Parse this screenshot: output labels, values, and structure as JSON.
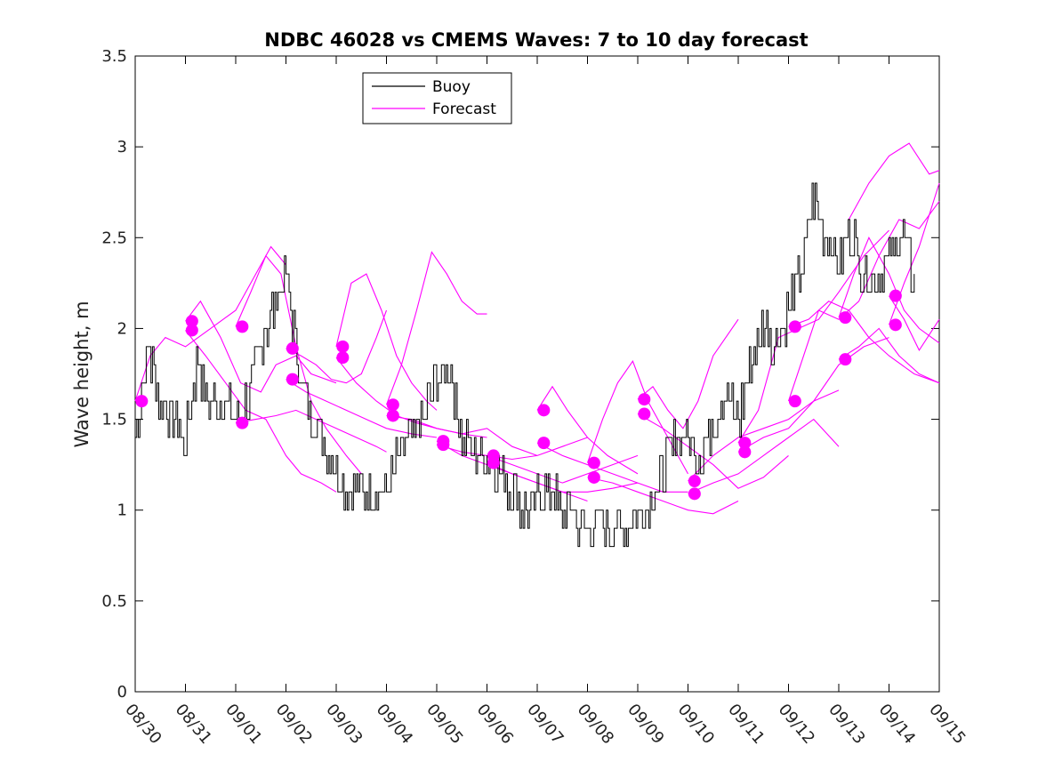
{
  "chart_data": {
    "type": "line",
    "title": "NDBC 46028 vs CMEMS Waves: 7 to 10 day forecast",
    "xlabel": "",
    "ylabel": "Wave height, m",
    "xlim": [
      0,
      16
    ],
    "ylim": [
      0,
      3.5
    ],
    "x_unit": "days since 08/30 00:00",
    "x_ticks": [
      0,
      1,
      2,
      3,
      4,
      5,
      6,
      7,
      8,
      9,
      10,
      11,
      12,
      13,
      14,
      15,
      16
    ],
    "x_tick_labels": [
      "08/30",
      "08/31",
      "09/01",
      "09/02",
      "09/03",
      "09/04",
      "09/05",
      "09/06",
      "09/07",
      "09/08",
      "09/09",
      "09/10",
      "09/11",
      "09/12",
      "09/13",
      "09/14",
      "09/15"
    ],
    "y_ticks": [
      0,
      0.5,
      1,
      1.5,
      2,
      2.5,
      3,
      3.5
    ],
    "y_tick_labels": [
      "0",
      "0.5",
      "1",
      "1.5",
      "2",
      "2.5",
      "3",
      "3.5"
    ],
    "grid": false,
    "legend_position": "top-left",
    "colors": {
      "buoy": "#000000",
      "forecast": "#ff00ff"
    },
    "series": [
      {
        "name": "Buoy",
        "color": "#000000",
        "x": [
          0,
          0.25,
          0.5,
          0.75,
          1,
          1.25,
          1.5,
          1.75,
          2,
          2.25,
          2.5,
          2.75,
          3,
          3.25,
          3.5,
          3.75,
          4,
          4.25,
          4.5,
          4.75,
          5,
          5.25,
          5.5,
          5.75,
          6,
          6.25,
          6.5,
          6.75,
          7,
          7.25,
          7.5,
          7.75,
          8,
          8.25,
          8.5,
          8.75,
          9,
          9.25,
          9.5,
          9.75,
          10,
          10.25,
          10.5,
          10.75,
          11,
          11.25,
          11.5,
          11.75,
          12,
          12.25,
          12.5,
          12.75,
          13,
          13.25,
          13.5,
          13.75,
          14,
          14.25,
          14.5,
          14.75,
          15,
          15.25,
          15.5
        ],
        "y": [
          1.4,
          1.9,
          1.6,
          1.5,
          1.4,
          1.8,
          1.55,
          1.6,
          1.5,
          1.6,
          1.9,
          2.1,
          2.3,
          1.8,
          1.5,
          1.4,
          1.2,
          1.1,
          1.1,
          1.15,
          1.1,
          1.3,
          1.4,
          1.5,
          1.7,
          1.8,
          1.4,
          1.3,
          1.3,
          1.2,
          1.1,
          1.0,
          1.05,
          1.1,
          1.0,
          0.95,
          0.9,
          0.95,
          0.9,
          0.9,
          1.0,
          1.05,
          1.2,
          1.4,
          1.4,
          1.3,
          1.5,
          1.6,
          1.5,
          1.8,
          2.0,
          1.9,
          2.1,
          2.3,
          2.7,
          2.5,
          2.4,
          2.5,
          2.3,
          2.3,
          2.4,
          2.5,
          2.3
        ]
      }
    ],
    "forecast_runs": [
      {
        "name": "Forecast",
        "x": [
          0,
          0.3,
          0.6,
          1.0,
          1.5,
          2.0,
          2.4,
          2.7,
          3.0
        ],
        "y": [
          1.6,
          1.85,
          1.95,
          1.9,
          2.0,
          2.1,
          2.3,
          2.45,
          2.35
        ]
      },
      {
        "name": "Forecast",
        "x": [
          1.0,
          1.3,
          1.7,
          2.1,
          2.5,
          2.8,
          3.2,
          3.5,
          4.0
        ],
        "y": [
          2.04,
          2.15,
          1.95,
          1.7,
          1.65,
          1.8,
          1.85,
          1.75,
          1.7
        ]
      },
      {
        "name": "Forecast",
        "x": [
          1.0,
          1.4,
          1.8,
          2.2,
          2.6,
          3.0,
          3.3,
          3.7,
          4.0
        ],
        "y": [
          1.99,
          1.85,
          1.7,
          1.55,
          1.5,
          1.3,
          1.2,
          1.15,
          1.1
        ]
      },
      {
        "name": "Forecast",
        "x": [
          2.0,
          2.3,
          2.6,
          2.9,
          3.2,
          3.5,
          3.8,
          4.2,
          4.5
        ],
        "y": [
          2.01,
          2.2,
          2.4,
          2.3,
          1.9,
          1.6,
          1.45,
          1.3,
          1.2
        ]
      },
      {
        "name": "Forecast",
        "x": [
          2.0,
          2.4,
          2.8,
          3.2,
          3.6,
          4.0,
          4.4,
          4.8,
          5.0
        ],
        "y": [
          1.48,
          1.5,
          1.52,
          1.55,
          1.5,
          1.45,
          1.4,
          1.35,
          1.32
        ]
      },
      {
        "name": "Forecast",
        "x": [
          3.0,
          3.3,
          3.6,
          3.9,
          4.2,
          4.5,
          4.8,
          5.0
        ],
        "y": [
          1.89,
          1.85,
          1.8,
          1.72,
          1.7,
          1.75,
          1.95,
          2.1
        ]
      },
      {
        "name": "Forecast",
        "x": [
          3.0,
          3.4,
          3.8,
          4.2,
          4.6,
          5.0,
          5.5,
          6.0
        ],
        "y": [
          1.72,
          1.65,
          1.6,
          1.55,
          1.5,
          1.45,
          1.42,
          1.4
        ]
      },
      {
        "name": "Forecast",
        "x": [
          4.0,
          4.3,
          4.6,
          4.9,
          5.2,
          5.5,
          5.8,
          6.0
        ],
        "y": [
          1.9,
          2.25,
          2.3,
          2.1,
          1.85,
          1.7,
          1.6,
          1.55
        ]
      },
      {
        "name": "Forecast",
        "x": [
          4.0,
          4.4,
          4.8,
          5.2,
          5.6,
          6.0,
          6.5,
          7.0
        ],
        "y": [
          1.84,
          1.7,
          1.6,
          1.52,
          1.48,
          1.45,
          1.42,
          1.4
        ]
      },
      {
        "name": "Forecast",
        "x": [
          5.0,
          5.3,
          5.6,
          5.9,
          6.2,
          6.5,
          6.8,
          7.0
        ],
        "y": [
          1.58,
          1.8,
          2.1,
          2.42,
          2.3,
          2.15,
          2.08,
          2.08
        ]
      },
      {
        "name": "Forecast",
        "x": [
          5.0,
          5.5,
          6.0,
          6.5,
          7.0,
          7.5,
          8.0
        ],
        "y": [
          1.52,
          1.5,
          1.45,
          1.42,
          1.45,
          1.35,
          1.3
        ]
      },
      {
        "name": "Forecast",
        "x": [
          6.0,
          6.5,
          7.0,
          7.5,
          8.0,
          8.5,
          9.0
        ],
        "y": [
          1.38,
          1.3,
          1.25,
          1.2,
          1.15,
          1.1,
          1.05
        ]
      },
      {
        "name": "Forecast",
        "x": [
          6.0,
          6.5,
          7.0,
          7.5,
          8.0,
          8.5,
          9.0
        ],
        "y": [
          1.36,
          1.32,
          1.3,
          1.28,
          1.3,
          1.35,
          1.4
        ]
      },
      {
        "name": "Forecast",
        "x": [
          7.0,
          7.5,
          8.0,
          8.5,
          9.0,
          9.5,
          10.0
        ],
        "y": [
          1.3,
          1.25,
          1.2,
          1.15,
          1.2,
          1.25,
          1.3
        ]
      },
      {
        "name": "Forecast",
        "x": [
          7.0,
          7.5,
          8.0,
          8.5,
          9.0,
          9.5,
          10.0
        ],
        "y": [
          1.26,
          1.2,
          1.15,
          1.1,
          1.1,
          1.12,
          1.15
        ]
      },
      {
        "name": "Forecast",
        "x": [
          8.0,
          8.3,
          8.6,
          9.0,
          9.4,
          9.7,
          10.0
        ],
        "y": [
          1.55,
          1.68,
          1.55,
          1.4,
          1.3,
          1.25,
          1.2
        ]
      },
      {
        "name": "Forecast",
        "x": [
          8.0,
          8.5,
          9.0,
          9.5,
          10.0,
          10.5,
          11.0
        ],
        "y": [
          1.37,
          1.3,
          1.25,
          1.2,
          1.15,
          1.1,
          1.1
        ]
      },
      {
        "name": "Forecast",
        "x": [
          9.0,
          9.3,
          9.6,
          9.9,
          10.2,
          10.6,
          11.0
        ],
        "y": [
          1.26,
          1.5,
          1.7,
          1.82,
          1.6,
          1.4,
          1.2
        ]
      },
      {
        "name": "Forecast",
        "x": [
          9.0,
          9.5,
          10.0,
          10.5,
          11.0,
          11.5,
          12.0
        ],
        "y": [
          1.18,
          1.15,
          1.1,
          1.05,
          1.0,
          0.98,
          1.05
        ]
      },
      {
        "name": "Forecast",
        "x": [
          10.0,
          10.3,
          10.6,
          10.9,
          11.2,
          11.5,
          12.0
        ],
        "y": [
          1.61,
          1.68,
          1.55,
          1.45,
          1.6,
          1.85,
          2.05
        ]
      },
      {
        "name": "Forecast",
        "x": [
          10.0,
          10.5,
          11.0,
          11.5,
          12.0,
          12.5,
          13.0
        ],
        "y": [
          1.53,
          1.45,
          1.35,
          1.25,
          1.12,
          1.18,
          1.3
        ]
      },
      {
        "name": "Forecast",
        "x": [
          11.0,
          11.5,
          12.0,
          12.5,
          13.0,
          13.5,
          14.0
        ],
        "y": [
          1.16,
          1.3,
          1.4,
          1.45,
          1.5,
          1.6,
          1.66
        ]
      },
      {
        "name": "Forecast",
        "x": [
          11.0,
          11.5,
          12.0,
          12.5,
          13.0,
          13.5,
          14.0
        ],
        "y": [
          1.09,
          1.15,
          1.2,
          1.3,
          1.4,
          1.5,
          1.35
        ]
      },
      {
        "name": "Forecast",
        "x": [
          12.0,
          12.4,
          12.8,
          13.2,
          13.6,
          14.0,
          14.5,
          15.0
        ],
        "y": [
          1.37,
          1.55,
          1.95,
          2.0,
          2.05,
          2.2,
          2.4,
          2.54
        ]
      },
      {
        "name": "Forecast",
        "x": [
          12.0,
          12.5,
          13.0,
          13.5,
          14.0,
          14.5,
          15.0
        ],
        "y": [
          1.32,
          1.4,
          1.45,
          1.6,
          1.8,
          1.9,
          1.95
        ]
      },
      {
        "name": "Forecast",
        "x": [
          13.0,
          13.3,
          13.6,
          14.0,
          14.4,
          14.8,
          15.2,
          15.6,
          16.0
        ],
        "y": [
          1.6,
          1.85,
          2.1,
          2.05,
          2.15,
          2.4,
          2.6,
          2.55,
          2.7
        ]
      },
      {
        "name": "Forecast",
        "x": [
          13.0,
          13.4,
          13.8,
          14.2,
          14.6,
          15.0,
          15.5,
          16.0
        ],
        "y": [
          2.01,
          2.05,
          2.15,
          2.1,
          1.95,
          1.85,
          1.75,
          1.7
        ]
      },
      {
        "name": "Forecast",
        "x": [
          14.0,
          14.3,
          14.6,
          15.0,
          15.3,
          15.6,
          16.0
        ],
        "y": [
          2.06,
          2.3,
          2.5,
          2.3,
          2.1,
          2.0,
          1.92
        ]
      },
      {
        "name": "Forecast",
        "x": [
          14.0,
          14.4,
          14.8,
          15.2,
          15.6,
          16.0
        ],
        "y": [
          1.83,
          1.9,
          2.0,
          1.85,
          1.75,
          1.7
        ]
      },
      {
        "name": "Forecast",
        "x": [
          14.2,
          14.6,
          15.0,
          15.4,
          15.8,
          16.0
        ],
        "y": [
          2.6,
          2.8,
          2.95,
          3.02,
          2.85,
          2.87
        ]
      },
      {
        "name": "Forecast",
        "x": [
          15.0,
          15.3,
          15.6,
          16.0
        ],
        "y": [
          2.18,
          2.05,
          1.88,
          2.05
        ]
      },
      {
        "name": "Forecast",
        "x": [
          15.0,
          15.3,
          15.6,
          16.0
        ],
        "y": [
          2.02,
          2.25,
          2.45,
          2.8
        ]
      }
    ],
    "forecast_markers": [
      {
        "x": 0.13,
        "y": 1.6
      },
      {
        "x": 1.13,
        "y": 2.04
      },
      {
        "x": 1.13,
        "y": 1.99
      },
      {
        "x": 2.13,
        "y": 2.01
      },
      {
        "x": 2.13,
        "y": 1.48
      },
      {
        "x": 3.13,
        "y": 1.89
      },
      {
        "x": 3.13,
        "y": 1.72
      },
      {
        "x": 4.13,
        "y": 1.9
      },
      {
        "x": 4.13,
        "y": 1.84
      },
      {
        "x": 5.13,
        "y": 1.58
      },
      {
        "x": 5.13,
        "y": 1.52
      },
      {
        "x": 6.13,
        "y": 1.38
      },
      {
        "x": 6.13,
        "y": 1.36
      },
      {
        "x": 7.13,
        "y": 1.3
      },
      {
        "x": 7.13,
        "y": 1.26
      },
      {
        "x": 8.13,
        "y": 1.55
      },
      {
        "x": 8.13,
        "y": 1.37
      },
      {
        "x": 9.13,
        "y": 1.26
      },
      {
        "x": 9.13,
        "y": 1.18
      },
      {
        "x": 10.13,
        "y": 1.61
      },
      {
        "x": 10.13,
        "y": 1.53
      },
      {
        "x": 11.13,
        "y": 1.16
      },
      {
        "x": 11.13,
        "y": 1.09
      },
      {
        "x": 12.13,
        "y": 1.37
      },
      {
        "x": 12.13,
        "y": 1.32
      },
      {
        "x": 13.13,
        "y": 2.01
      },
      {
        "x": 13.13,
        "y": 1.6
      },
      {
        "x": 14.13,
        "y": 2.06
      },
      {
        "x": 14.13,
        "y": 1.83
      },
      {
        "x": 15.13,
        "y": 2.18
      },
      {
        "x": 15.13,
        "y": 2.02
      }
    ],
    "legend": [
      {
        "label": "Buoy",
        "color": "#000000"
      },
      {
        "label": "Forecast",
        "color": "#ff00ff"
      }
    ]
  }
}
